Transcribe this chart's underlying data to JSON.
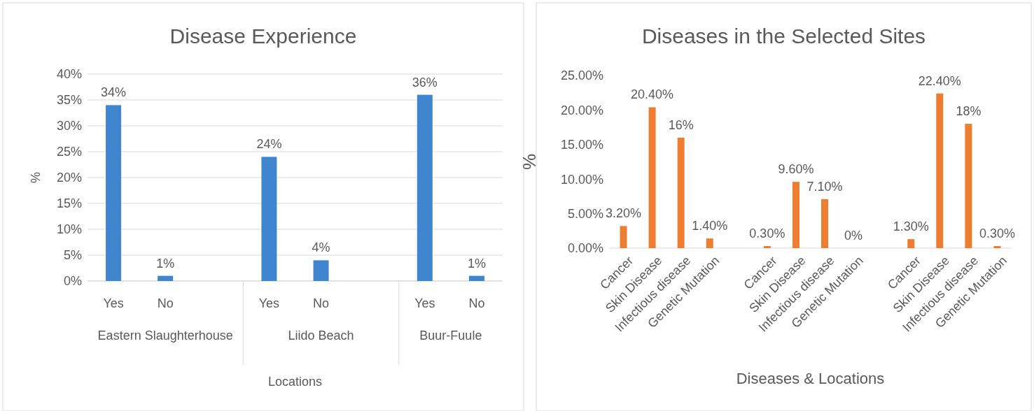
{
  "chart_data": [
    {
      "type": "bar",
      "title": "Disease Experience",
      "xlabel": "Locations",
      "ylabel": "%",
      "categories": [
        "Yes",
        "No",
        null,
        "Yes",
        "No",
        null,
        "Yes",
        "No"
      ],
      "values": [
        34,
        1,
        null,
        24,
        4,
        null,
        36,
        1
      ],
      "value_labels": [
        "34%",
        "1%",
        null,
        "24%",
        "4%",
        null,
        "36%",
        "1%"
      ],
      "color": "#3f86cf",
      "ylim": [
        0,
        40
      ],
      "yticks": [
        {
          "value": 0,
          "label": "0%"
        },
        {
          "value": 5,
          "label": "5%"
        },
        {
          "value": 10,
          "label": "10%"
        },
        {
          "value": 15,
          "label": "15%"
        },
        {
          "value": 20,
          "label": "20%"
        },
        {
          "value": 25,
          "label": "25%"
        },
        {
          "value": 30,
          "label": "30%"
        },
        {
          "value": 35,
          "label": "35%"
        },
        {
          "value": 40,
          "label": "40%"
        }
      ],
      "grid": "y",
      "annotations": [
        "Eastern Slaughterhouse",
        "Liido Beach",
        "Buur-Fuule"
      ]
    },
    {
      "type": "bar",
      "title": "Diseases in the Selected Sites",
      "xlabel": "Diseases & Locations",
      "ylabel": "%",
      "categories": [
        "Cancer",
        "Skin Disease",
        "Infectious disease",
        "Genetic Mutation",
        null,
        "Cancer",
        "Skin Disease",
        "Infectious disease",
        "Genetic Mutation",
        null,
        "Cancer",
        "Skin Disease",
        "Infectious disease",
        "Genetic Mutation"
      ],
      "values": [
        3.2,
        20.4,
        16,
        1.4,
        null,
        0.3,
        9.6,
        7.1,
        0,
        null,
        1.3,
        22.4,
        18,
        0.3
      ],
      "value_labels": [
        "3.20%",
        "20.40%",
        "16%",
        "1.40%",
        null,
        "0.30%",
        "9.60%",
        "7.10%",
        "0%",
        null,
        "1.30%",
        "22.40%",
        "18%",
        "0.30%"
      ],
      "color": "#ed7d31",
      "ylim": [
        0,
        25
      ],
      "yticks": [
        {
          "value": 0,
          "label": "0.00%"
        },
        {
          "value": 5,
          "label": "5.00%"
        },
        {
          "value": 10,
          "label": "10.00%"
        },
        {
          "value": 15,
          "label": "15.00%"
        },
        {
          "value": 20,
          "label": "20.00%"
        },
        {
          "value": 25,
          "label": "25.00%"
        }
      ]
    }
  ]
}
